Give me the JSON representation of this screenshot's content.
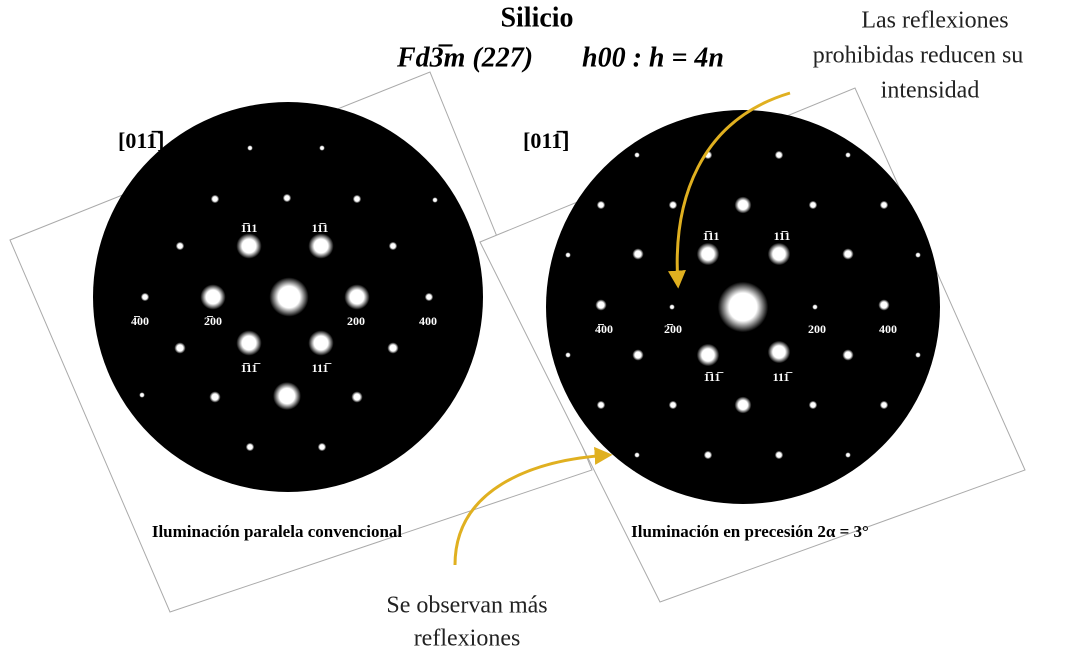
{
  "title": "Silicio",
  "subtitle": {
    "space_group": "Fd3̅m (227)",
    "rule": "h00 : h = 4n"
  },
  "left_panel": {
    "zone_axis": "[011̅]",
    "caption": "Iluminación paralela convencional",
    "labels": [
      "1̅11",
      "11̅1",
      "4̅00",
      "2̅00",
      "200",
      "400",
      "1̅11̅",
      "111̅"
    ]
  },
  "right_panel": {
    "zone_axis": "[011̅]",
    "caption": "Iluminación en precesión  2α = 3°",
    "labels": [
      "1̅11",
      "11̅1",
      "4̅00",
      "2̅00",
      "200",
      "400",
      "1̅11̅",
      "111̅"
    ]
  },
  "annotations": {
    "forbidden": [
      "Las reflexiones",
      "prohibidas reducen su",
      "intensidad"
    ],
    "more": [
      "Se observan más",
      "reflexiones"
    ]
  }
}
